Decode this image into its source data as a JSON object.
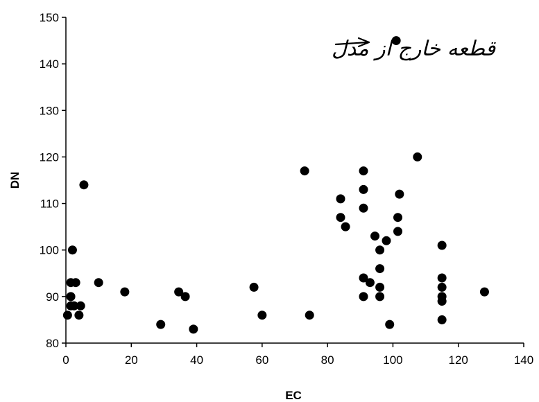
{
  "chart_data": {
    "type": "scatter",
    "xlabel": "EC",
    "ylabel": "DN",
    "xlim": [
      0,
      140
    ],
    "ylim": [
      80,
      150
    ],
    "xticks": [
      "0",
      "20",
      "40",
      "60",
      "80",
      "100",
      "120",
      "140"
    ],
    "yticks": [
      "80",
      "90",
      "100",
      "110",
      "120",
      "130",
      "140",
      "150"
    ],
    "grid": false,
    "marker_color": "#000000",
    "annotation": {
      "text": "قطعه خارج از مدل",
      "arrow_to": [
        99,
        145
      ]
    },
    "series": [
      {
        "points": [
          [
            0.5,
            86
          ],
          [
            1.5,
            93
          ],
          [
            1.5,
            90
          ],
          [
            1.5,
            88
          ],
          [
            2,
            100
          ],
          [
            2.5,
            88
          ],
          [
            3,
            93
          ],
          [
            4,
            86
          ],
          [
            4.5,
            88
          ],
          [
            5.5,
            114
          ],
          [
            10,
            93
          ],
          [
            18,
            91
          ],
          [
            29,
            84
          ],
          [
            34.5,
            91
          ],
          [
            36.5,
            90
          ],
          [
            39,
            83
          ],
          [
            57.5,
            92
          ],
          [
            60,
            86
          ],
          [
            73,
            117
          ],
          [
            74.5,
            86
          ],
          [
            84,
            111
          ],
          [
            84,
            107
          ],
          [
            85.5,
            105
          ],
          [
            91,
            117
          ],
          [
            91,
            113
          ],
          [
            91,
            109
          ],
          [
            91,
            94
          ],
          [
            91,
            90
          ],
          [
            93,
            93
          ],
          [
            94.5,
            103
          ],
          [
            96,
            100
          ],
          [
            96,
            96
          ],
          [
            96,
            92
          ],
          [
            96,
            90
          ],
          [
            98,
            102
          ],
          [
            99,
            84
          ],
          [
            101,
            145
          ],
          [
            101.5,
            107
          ],
          [
            101.5,
            104
          ],
          [
            102,
            112
          ],
          [
            107.5,
            120
          ],
          [
            115,
            101
          ],
          [
            115,
            94
          ],
          [
            115,
            92
          ],
          [
            115,
            90
          ],
          [
            115,
            89
          ],
          [
            115,
            85
          ],
          [
            128,
            91
          ]
        ]
      }
    ]
  }
}
